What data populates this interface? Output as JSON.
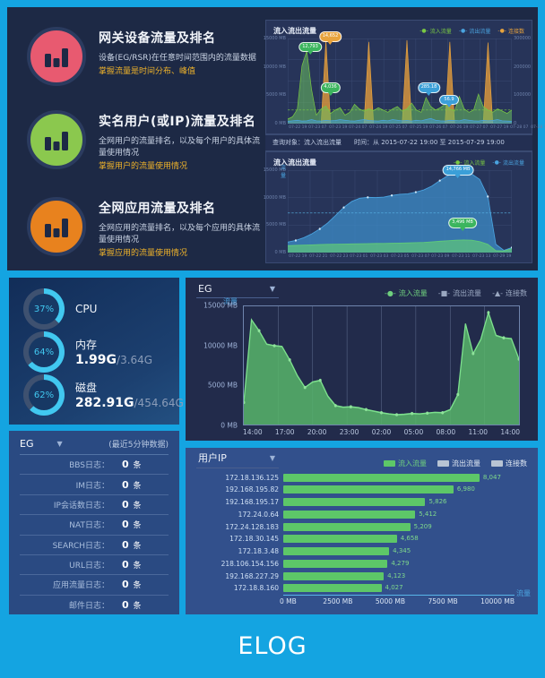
{
  "page": {
    "footer": "ELOG"
  },
  "hero": {
    "features": [
      {
        "title": "网关设备流量及排名",
        "desc": "设备(EG/RSR)在任意时间范围内的流量数据",
        "highlight": "掌握流量是时间分布、峰值",
        "icon_color": "#e85a70",
        "icon": "bar-chart-icon"
      },
      {
        "title": "实名用户(或IP)流量及排名",
        "desc": "全网用户的流量排名，以及每个用户的具体流量使用情况",
        "highlight": "掌握用户的流量使用情况",
        "icon_color": "#8bc84e",
        "icon": "bar-chart-icon"
      },
      {
        "title": "全网应用流量及排名",
        "desc": "全网应用的流量排名，以及每个应用的具体流量使用情况",
        "highlight": "掌握应用的流量使用情况",
        "icon_color": "#e8821e",
        "icon": "bar-chart-icon"
      }
    ],
    "query_bar": "查询对象：流入流出流量　　时间：从 2015-07-22 19:00 至 2015-07-29 19:00"
  },
  "system": {
    "gauges": [
      {
        "percent": "37%",
        "value": 37,
        "label": "CPU",
        "used": "",
        "total": ""
      },
      {
        "percent": "64%",
        "value": 64,
        "label": "内存",
        "used": "1.99G",
        "total": "/3.64G"
      },
      {
        "percent": "62%",
        "value": 62,
        "label": "磁盘",
        "used": "282.91G",
        "total": "/454.64G"
      }
    ],
    "arc_color": "#41c8f0",
    "ring_color": "#3e5170"
  },
  "logs": {
    "device": "EG",
    "note": "(最近5分钟数据)",
    "rows": [
      {
        "label": "BBS日志：",
        "count": "0",
        "unit": "条"
      },
      {
        "label": "IM日志：",
        "count": "0",
        "unit": "条"
      },
      {
        "label": "IP会话数日志：",
        "count": "0",
        "unit": "条"
      },
      {
        "label": "NAT日志：",
        "count": "0",
        "unit": "条"
      },
      {
        "label": "SEARCH日志：",
        "count": "0",
        "unit": "条"
      },
      {
        "label": "URL日志：",
        "count": "0",
        "unit": "条"
      },
      {
        "label": "应用流量日志：",
        "count": "0",
        "unit": "条"
      },
      {
        "label": "邮件日志：",
        "count": "0",
        "unit": "条"
      }
    ]
  },
  "chart_data": [
    {
      "name": "eg_traffic",
      "type": "area",
      "title": "EG",
      "ylabel": "流量",
      "yticks": [
        "15000 MB",
        "10000 MB",
        "5000 MB",
        "0 MB"
      ],
      "ymax": 15000,
      "xticks": [
        "14:00",
        "17:00",
        "20:00",
        "23:00",
        "02:00",
        "05:00",
        "08:00",
        "11:00",
        "14:00"
      ],
      "legend": [
        {
          "label": "流入流量",
          "marker": "-●-",
          "color": "#6fcf7e"
        },
        {
          "label": "流出流量",
          "marker": "-■-",
          "color": "#9aa7c0"
        },
        {
          "label": "连接数",
          "marker": "-▲-",
          "color": "#9aa7c0"
        }
      ],
      "series": [
        {
          "name": "流入流量",
          "color": "#6fcf7e",
          "values": [
            2800,
            13300,
            11900,
            10200,
            10000,
            9900,
            8200,
            6200,
            4700,
            5400,
            5600,
            3600,
            2400,
            2200,
            2250,
            2150,
            1900,
            1700,
            1500,
            1350,
            1250,
            1300,
            1400,
            1350,
            1450,
            1550,
            1500,
            1900,
            3800,
            12800,
            9000,
            10800,
            14200,
            11300,
            11000,
            10900,
            8300
          ]
        }
      ],
      "grid": true
    },
    {
      "name": "user_ip",
      "type": "bar",
      "title": "用户IP",
      "xlabel": "流量",
      "xticks": [
        "0 MB",
        "2500 MB",
        "5000 MB",
        "7500 MB",
        "10000 MB"
      ],
      "xmax": 10000,
      "legend": [
        {
          "label": "流入流量",
          "color": "#5dc768",
          "text_color": "#6fcf7e"
        },
        {
          "label": "流出流量",
          "color": "#b8c4d4",
          "text_color": "#dfe7f2"
        },
        {
          "label": "连接数",
          "color": "#b8c4d4",
          "text_color": "#dfe7f2"
        }
      ],
      "categories": [
        "172.18.136.125",
        "192.168.195.82",
        "192.168.195.17",
        "172.24.0.64",
        "172.24.128.183",
        "172.18.30.145",
        "172.18.3.48",
        "218.106.154.156",
        "192.168.227.29",
        "172.18.8.160"
      ],
      "values": [
        8047,
        6980,
        5826,
        5412,
        5209,
        4658,
        4345,
        4279,
        4123,
        4027
      ],
      "value_labels": [
        "8,047",
        "6,980",
        "5,826",
        "5,412",
        "5,209",
        "4,658",
        "4,345",
        "4,279",
        "4,123",
        "4,027"
      ],
      "bar_color": "#5dc768"
    },
    {
      "name": "hero_overview",
      "type": "area",
      "title": "流入流出流量",
      "ymax": 15000,
      "yticks_left": [
        "15000 MB",
        "10000 MB",
        "5000 MB",
        "0 MB"
      ],
      "yticks_right": [
        "300000",
        "200000",
        "100000",
        "0"
      ],
      "xticks": [
        "07-22 19",
        "07-23 07",
        "07-23 19",
        "07-24 07",
        "07-24 19",
        "07-25 07",
        "07-25 19",
        "07-26 07",
        "07-26 19",
        "07-27 07",
        "07-27 19",
        "07-28 07",
        "07-28 19",
        "07-29 07",
        "07-29 19"
      ],
      "legend": [
        {
          "label": "流入流量",
          "color": "#7ac943"
        },
        {
          "label": "流出流量",
          "color": "#4aa3df"
        },
        {
          "label": "连接数",
          "color": "#e8a33d"
        }
      ],
      "avg_line": 2400,
      "series": [
        {
          "name": "连接数",
          "color": "#e8a33d",
          "fill": "rgba(226,155,59,0.8)",
          "values": [
            0,
            0,
            0,
            0,
            0,
            0,
            0,
            0,
            14600,
            0,
            0,
            0,
            0,
            0,
            0,
            0,
            0,
            14400,
            0,
            0,
            0,
            0,
            0,
            0,
            0,
            14700,
            0,
            0,
            0,
            0,
            0,
            0,
            0,
            0,
            14400,
            0,
            0,
            0,
            0,
            0,
            0,
            0,
            14300,
            0,
            0,
            0,
            0,
            0
          ]
        },
        {
          "name": "流入流量",
          "color": "#7ac943",
          "fill": "rgba(106,191,94,0.55)",
          "values": [
            800,
            1200,
            2500,
            10200,
            12800,
            6000,
            1500,
            2600,
            3100,
            1800,
            2400,
            2800,
            1500,
            2000,
            3400,
            2600,
            2200,
            2600,
            2300,
            2800,
            2400,
            2000,
            2600,
            3000,
            2200,
            2600,
            3600,
            2400,
            2000,
            4600,
            3000,
            2400,
            2800,
            3400,
            2600,
            2200,
            4800,
            2600,
            2000,
            2400,
            5200,
            3000,
            2400,
            2000,
            2600,
            2200,
            1800,
            2400
          ]
        },
        {
          "name": "流出流量",
          "color": "#4aa3df",
          "fill": "rgba(74,163,223,0.5)",
          "values": [
            400,
            500,
            600,
            450,
            500,
            700,
            500,
            450,
            600,
            500,
            550,
            700,
            600,
            500,
            450,
            600,
            700,
            550,
            500,
            450,
            600,
            500,
            700,
            600,
            500,
            550,
            450,
            600,
            500,
            700,
            900,
            600,
            500,
            450,
            600,
            550,
            500,
            700,
            600,
            500,
            450,
            600,
            500,
            550,
            700,
            500,
            450,
            400
          ]
        }
      ],
      "balloons": [
        {
          "label": "12,793",
          "color": "#3cb55e",
          "x": 10,
          "y": 4
        },
        {
          "label": "14,652",
          "color": "#e8a33d",
          "x": 19,
          "y": -8
        },
        {
          "label": "4,036",
          "color": "#3cb55e",
          "x": 19,
          "y": 52
        },
        {
          "label": "285.18",
          "color": "#3b9fd8",
          "x": 63,
          "y": 52
        },
        {
          "label": "56.9",
          "color": "#3b9fd8",
          "x": 72,
          "y": 66
        }
      ]
    },
    {
      "name": "hero_detail",
      "type": "area",
      "title": "流入流出流量",
      "ylabel": "流量",
      "ymax": 15000,
      "yticks_left": [
        "15000 MB",
        "10000 MB",
        "5000 MB",
        "0 MB"
      ],
      "xticks": [
        "07-22 19",
        "07-22 21",
        "07-22 23",
        "07-23 01",
        "07-23 03",
        "07-23 05",
        "07-23 07",
        "07-23 09",
        "07-23 11",
        "07-23 13",
        "07-29 19"
      ],
      "legend": [
        {
          "label": "流入流量",
          "color": "#7ac943"
        },
        {
          "label": "流出流量",
          "color": "#4aa3df"
        }
      ],
      "avg_line": 7200,
      "series": [
        {
          "name": "流出流量",
          "color": "#4aa3df",
          "fill": "rgba(62,140,200,0.75)",
          "markers": true,
          "values": [
            1900,
            2200,
            2700,
            3400,
            4300,
            5400,
            6800,
            8200,
            9300,
            9900,
            10050,
            10000,
            10100,
            10400,
            10600,
            10700,
            11000,
            11400,
            12100,
            13100,
            14000,
            14600,
            14766,
            14300,
            13300,
            10200,
            1500,
            400,
            900
          ]
        },
        {
          "name": "流入流量",
          "color": "#5fc97a",
          "fill": "rgba(95,201,122,0.7)",
          "values": [
            1250,
            1300,
            1350,
            1400,
            1450,
            1500,
            1520,
            1550,
            1570,
            1600,
            1620,
            1650,
            1670,
            1700,
            1730,
            1760,
            1800,
            1850,
            1950,
            2050,
            2150,
            2250,
            2300,
            2250,
            2000,
            1500,
            350,
            280,
            700
          ]
        }
      ],
      "balloons": [
        {
          "label": "14,766 MB",
          "color": "#3b9fd8",
          "x": 76,
          "y": -6
        },
        {
          "label": "3,496 MB",
          "color": "#3cb55e",
          "x": 78,
          "y": 58
        }
      ]
    }
  ]
}
